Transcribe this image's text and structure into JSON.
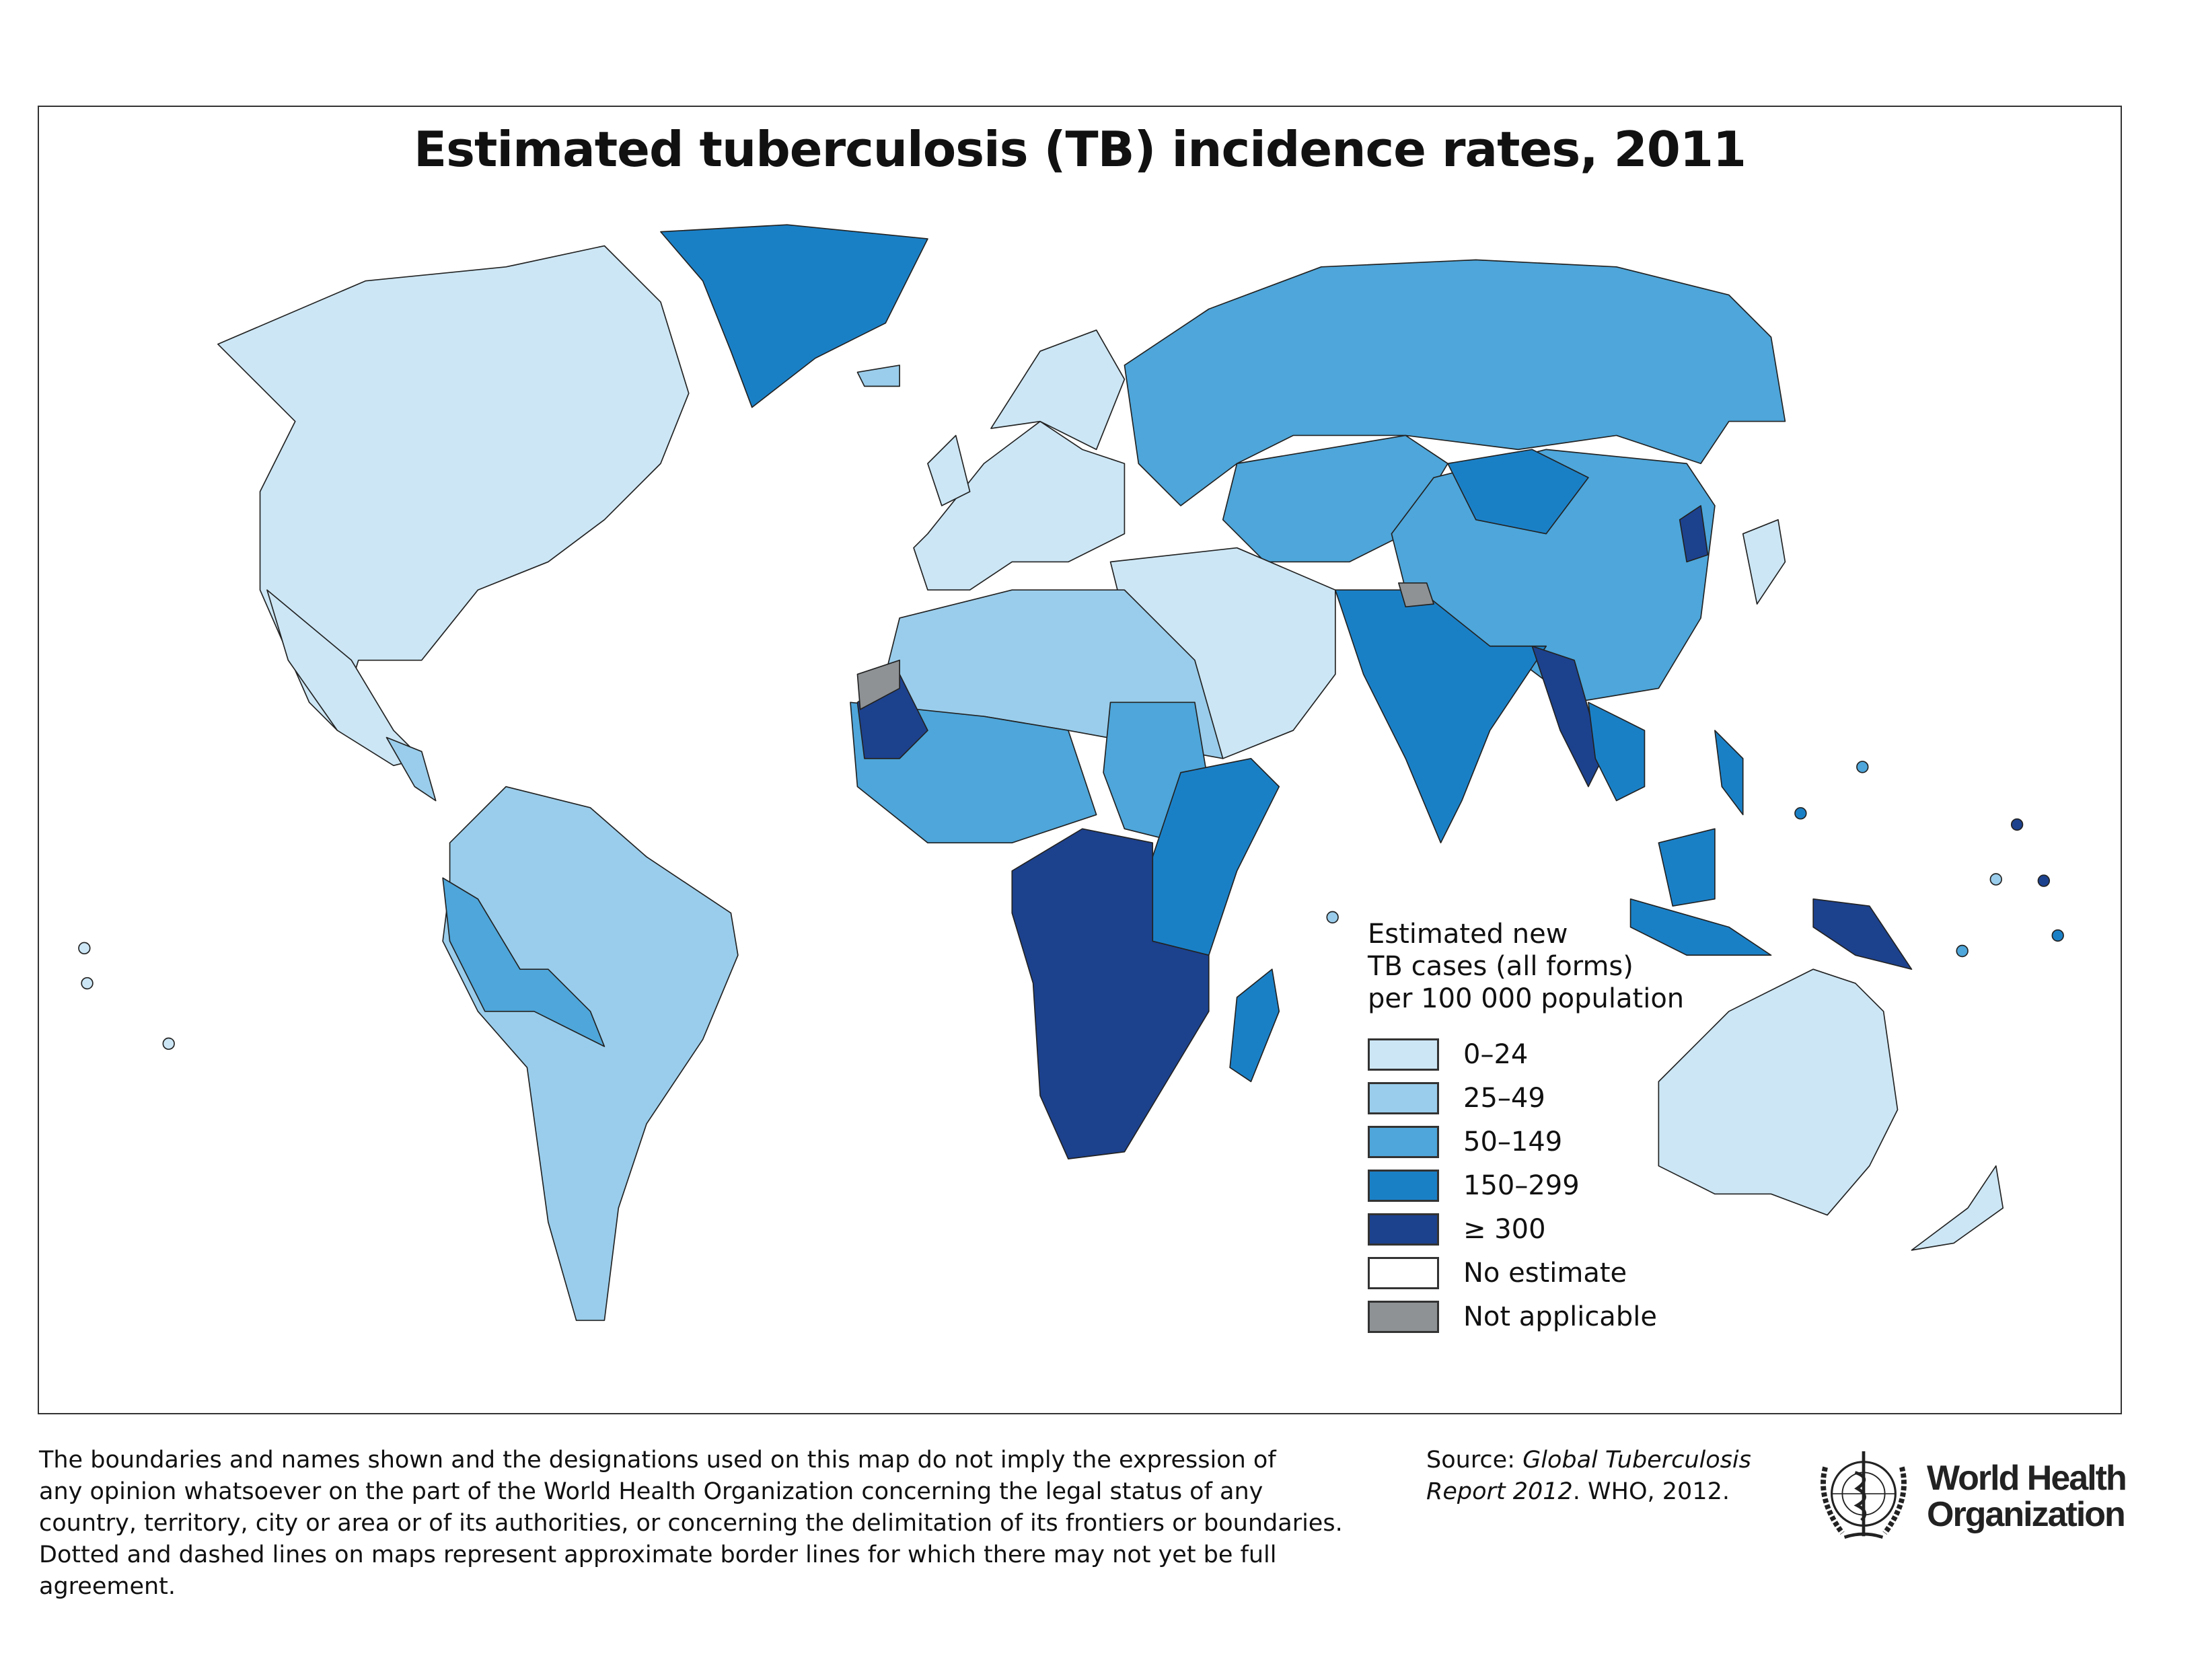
{
  "title": "Estimated tuberculosis (TB) incidence rates, 2011",
  "legend": {
    "title_lines": [
      "Estimated new",
      "TB cases (all forms)",
      "per 100 000 population"
    ],
    "items": [
      {
        "label": "0–24",
        "color": "#cce6f5"
      },
      {
        "label": "25–49",
        "color": "#9acdeb"
      },
      {
        "label": "50–149",
        "color": "#4ea6da"
      },
      {
        "label": "150–299",
        "color": "#1a80c6"
      },
      {
        "label": "≥ 300",
        "color": "#1c418d"
      },
      {
        "label": "No estimate",
        "color": "#ffffff"
      },
      {
        "label": "Not applicable",
        "color": "#8e9295"
      }
    ]
  },
  "disclaimer": [
    "The boundaries and names shown and the designations used on this map do not imply the expression of",
    "any opinion whatsoever on the part of the World Health Organization concerning the legal status of any",
    "country, territory, city or area or of its authorities, or concerning the delimitation of its frontiers or boundaries.",
    "Dotted and dashed lines on maps represent approximate border lines for which there may not yet be full agreement."
  ],
  "source": {
    "prefix": "Source: ",
    "title_part1": "Global Tuberculosis",
    "title_part2": "Report 2012",
    "suffix": ". WHO, 2012."
  },
  "logo": {
    "line1": "World Health",
    "line2": "Organization"
  }
}
